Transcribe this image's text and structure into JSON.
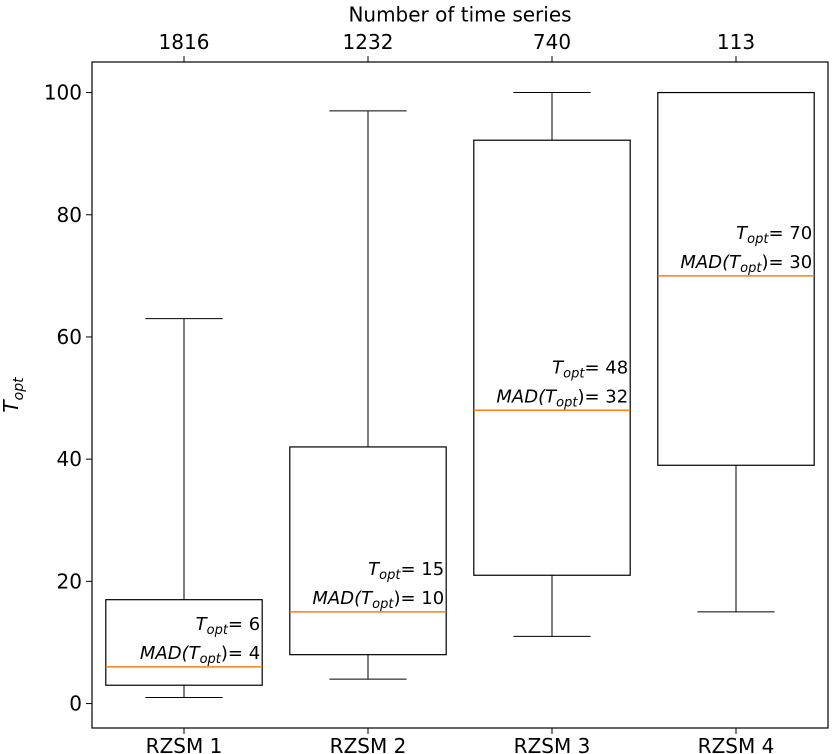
{
  "chart_data": {
    "type": "box",
    "categories": [
      "RZSM 1",
      "RZSM 2",
      "RZSM 3",
      "RZSM 4"
    ],
    "whisker_low": [
      1,
      4,
      11,
      15
    ],
    "q1": [
      3,
      8,
      21,
      39
    ],
    "median": [
      6,
      15,
      48,
      70
    ],
    "q3": [
      17,
      42,
      92.2,
      100
    ],
    "whisker_high": [
      63,
      97,
      100,
      100
    ],
    "mad": [
      4,
      10,
      32,
      30
    ],
    "box_color": "#000000",
    "median_color": "#ff7f0e",
    "annotation_parts": {
      "symbol": "T",
      "subscript": "opt",
      "equals": "= ",
      "mad_open": "MAD(",
      "mad_close": ")"
    },
    "ylabel": {
      "symbol": "T",
      "subscript": "opt"
    },
    "top_axis_label": "Number of time series",
    "top_axis_values": [
      1816,
      1232,
      740,
      113
    ],
    "ylim": [
      -4,
      105
    ],
    "yticks": [
      0,
      20,
      40,
      60,
      80,
      100
    ]
  }
}
